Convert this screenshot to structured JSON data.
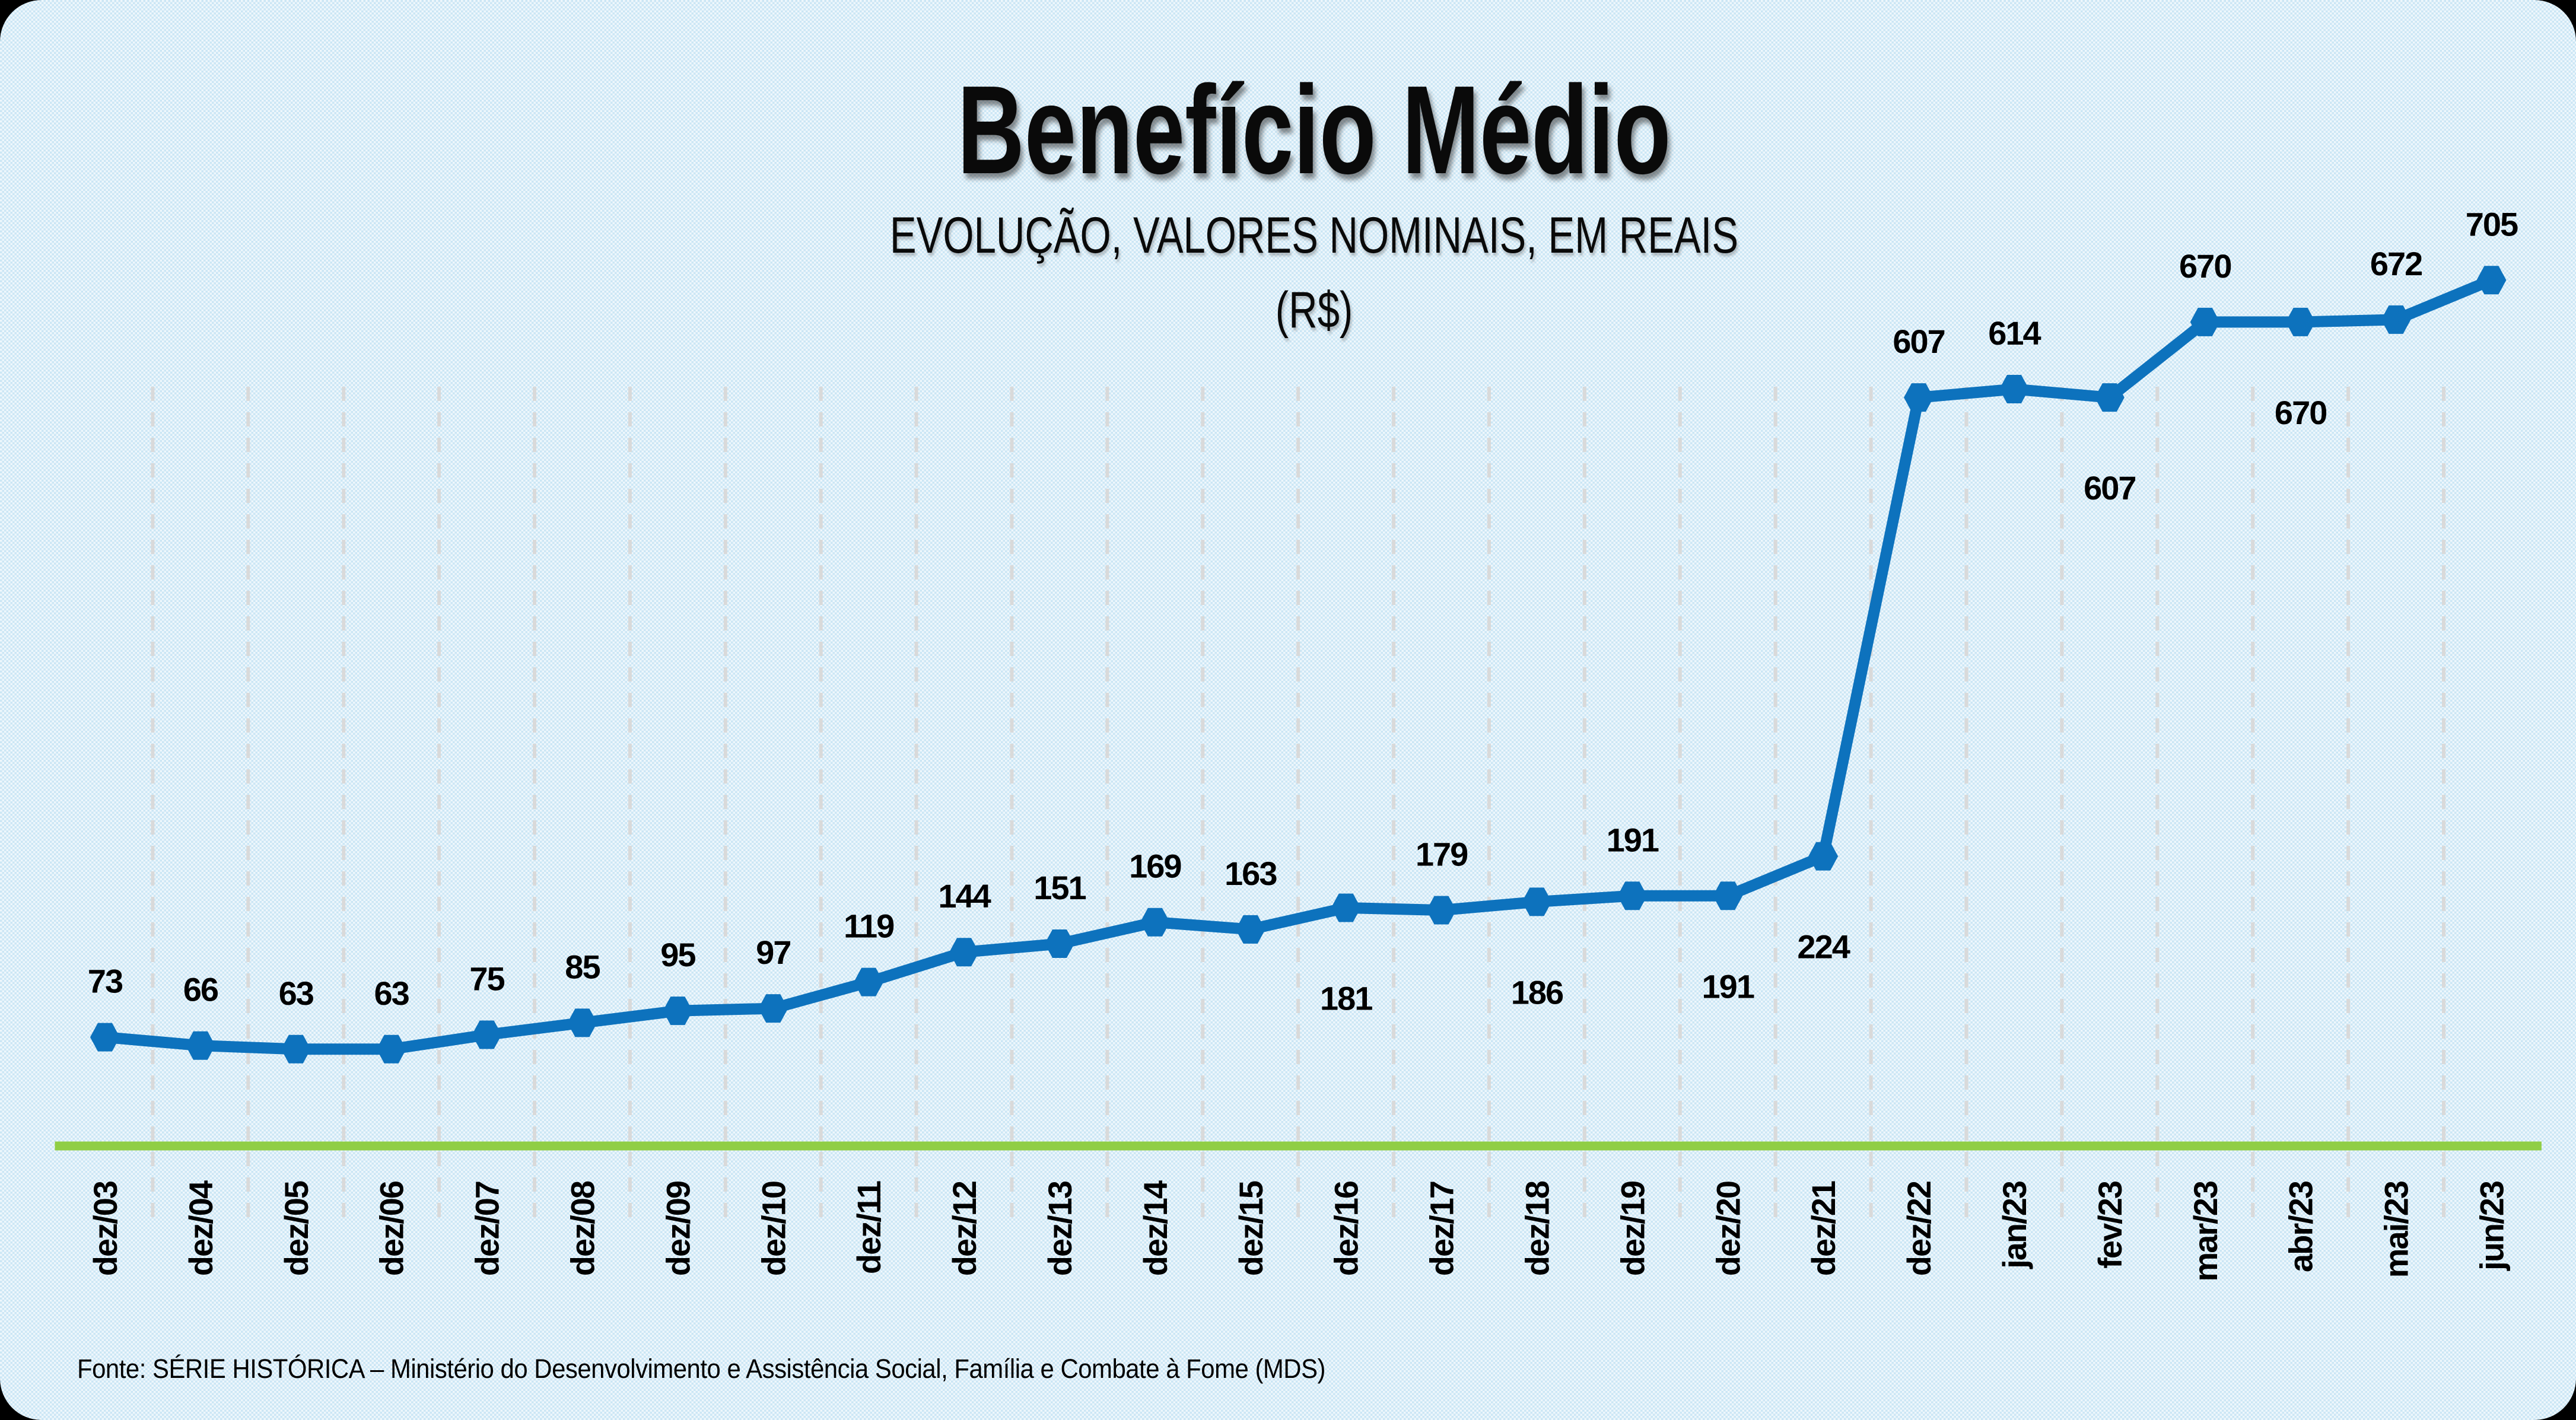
{
  "title": "Benefício Médio",
  "subtitle_line1": "EVOLUÇÃO, VALORES NOMINAIS, EM REAIS",
  "subtitle_line2": "(R$)",
  "footer": "Fonte: SÉRIE HISTÓRICA – Ministério do Desenvolvimento e Assistência Social, Família e Combate à Fome (MDS)",
  "colors": {
    "line": "#0d72bd",
    "marker": "#0d72bd",
    "axis_line": "#90ce45",
    "gridline": "#d9d9d9",
    "label_text": "#000000",
    "background_checker_1": "#cbe6f5",
    "background_checker_2": "#eef7fc",
    "frame": "#000000"
  },
  "chart_data": {
    "type": "line",
    "title": "Benefício Médio",
    "subtitle": "EVOLUÇÃO, VALORES NOMINAIS, EM REAIS (R$)",
    "xlabel": "",
    "ylabel": "",
    "legend": "none",
    "grid": "vertical-dashed",
    "marker": "hexagon",
    "ylim": [
      0,
      720
    ],
    "categories": [
      "dez/03",
      "dez/04",
      "dez/05",
      "dez/06",
      "dez/07",
      "dez/08",
      "dez/09",
      "dez/10",
      "dez/11",
      "dez/12",
      "dez/13",
      "dez/14",
      "dez/15",
      "dez/16",
      "dez/17",
      "dez/18",
      "dez/19",
      "dez/20",
      "dez/21",
      "dez/22",
      "jan/23",
      "fev/23",
      "mar/23",
      "abr/23",
      "mai/23",
      "jun/23"
    ],
    "series": [
      {
        "name": "Benefício Médio (R$)",
        "values": [
          73,
          66,
          63,
          63,
          75,
          85,
          95,
          97,
          119,
          144,
          151,
          169,
          163,
          181,
          179,
          186,
          191,
          191,
          224,
          607,
          614,
          607,
          670,
          670,
          672,
          705
        ]
      }
    ],
    "data_label_positions": [
      "above",
      "above",
      "above",
      "above",
      "above",
      "above",
      "above",
      "above",
      "above",
      "above",
      "above",
      "above",
      "above",
      "below",
      "above",
      "below",
      "above",
      "below",
      "below",
      "above",
      "above",
      "below",
      "above",
      "below",
      "above",
      "above"
    ]
  }
}
